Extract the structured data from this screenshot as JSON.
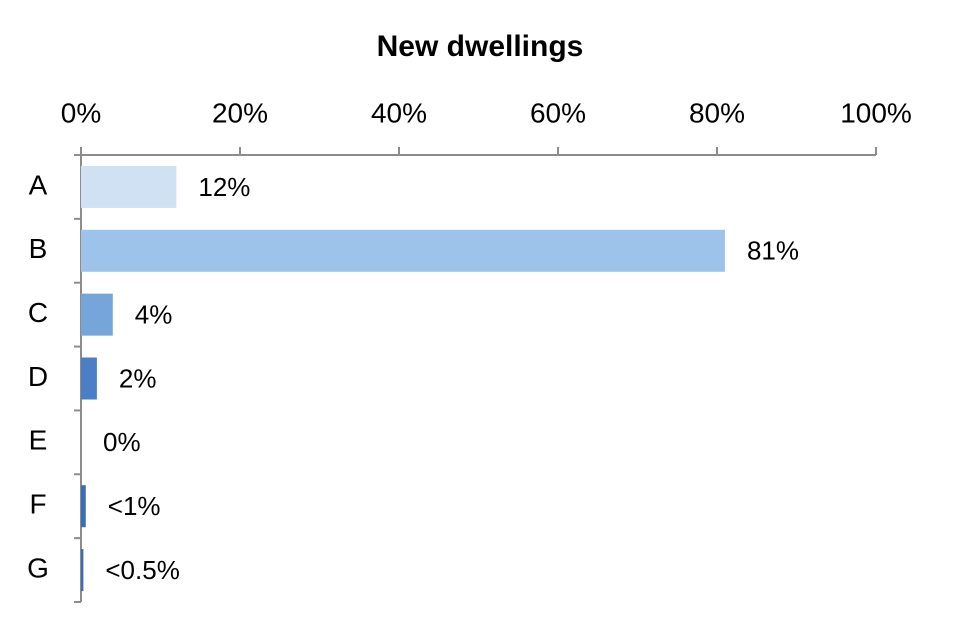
{
  "chart_data": {
    "type": "hbar",
    "title": "New dwellings",
    "categories": [
      "A",
      "B",
      "C",
      "D",
      "E",
      "F",
      "G"
    ],
    "values": [
      12,
      81,
      4,
      2,
      0,
      0.6,
      0.3
    ],
    "value_labels": [
      "12%",
      "81%",
      "4%",
      "2%",
      "0%",
      "<1%",
      "<0.5%"
    ],
    "colors": [
      "#d0e1f4",
      "#9dc3ea",
      "#76a6d9",
      "#4b7fc5",
      "#3a6db5",
      "#3a6db5",
      "#3a6db5"
    ],
    "xlim": [
      0,
      100
    ],
    "xticks": [
      {
        "value": 0,
        "label": "0%"
      },
      {
        "value": 20,
        "label": "20%"
      },
      {
        "value": 40,
        "label": "40%"
      },
      {
        "value": 60,
        "label": "60%"
      },
      {
        "value": 80,
        "label": "80%"
      },
      {
        "value": 100,
        "label": "100%"
      }
    ],
    "grid": false
  }
}
